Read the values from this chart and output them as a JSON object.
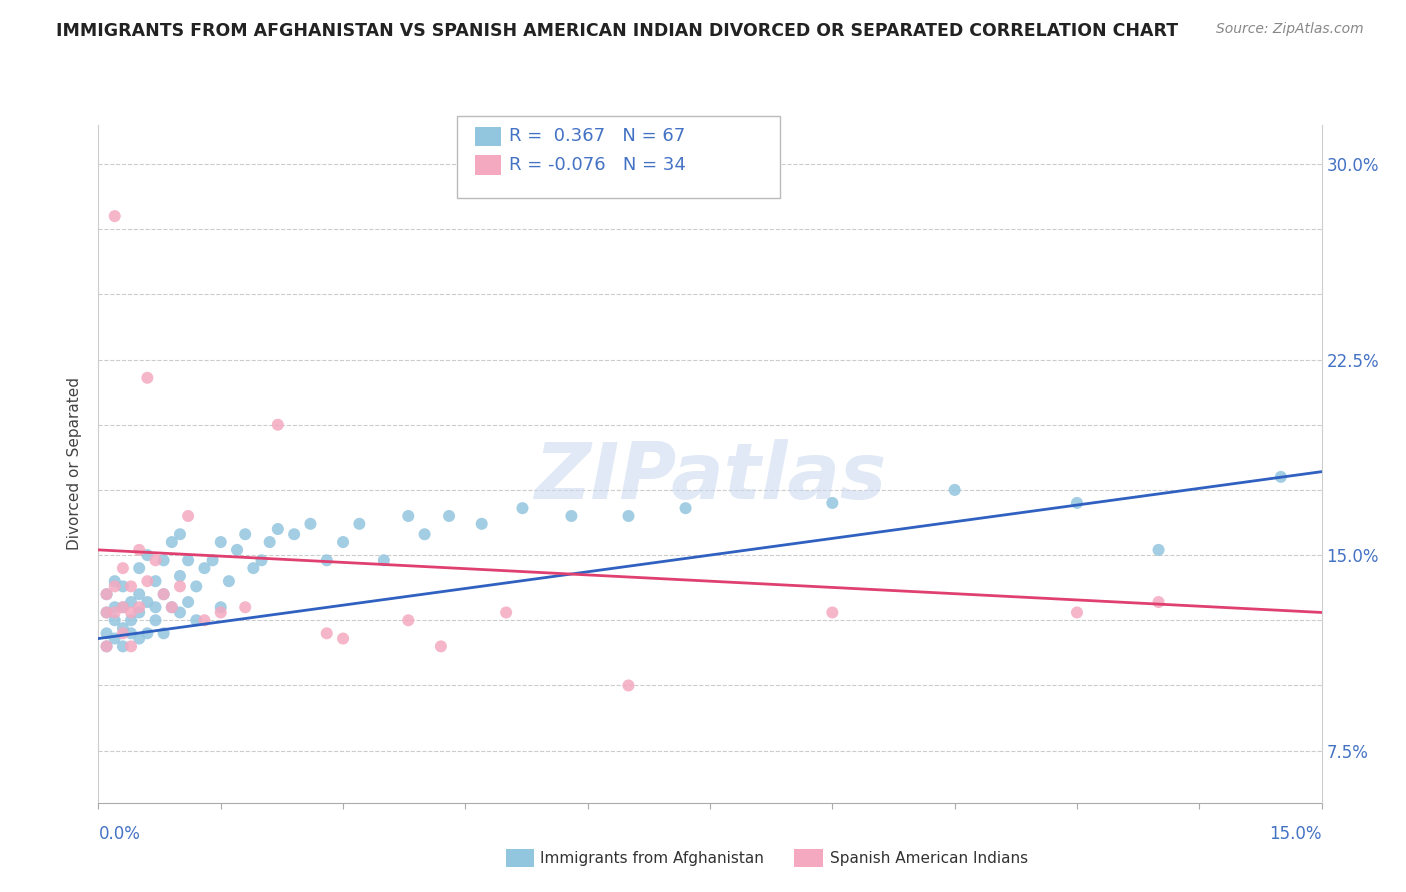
{
  "title": "IMMIGRANTS FROM AFGHANISTAN VS SPANISH AMERICAN INDIAN DIVORCED OR SEPARATED CORRELATION CHART",
  "source": "Source: ZipAtlas.com",
  "ylabel": "Divorced or Separated",
  "legend_label1": "Immigrants from Afghanistan",
  "legend_label2": "Spanish American Indians",
  "r1": "0.367",
  "n1": "67",
  "r2": "-0.076",
  "n2": "34",
  "blue_color": "#92c5de",
  "pink_color": "#f4a9c0",
  "trend_blue": "#3060c0",
  "trend_pink": "#e04070",
  "axis_label_color": "#4472c4",
  "title_color": "#222222",
  "watermark": "ZIPatlas",
  "xlim": [
    0.0,
    0.15
  ],
  "ylim": [
    0.055,
    0.315
  ],
  "blue_trend_y0": 0.118,
  "blue_trend_y1": 0.182,
  "pink_trend_y0": 0.152,
  "pink_trend_y1": 0.128,
  "blue_scatter_x": [
    0.001,
    0.001,
    0.001,
    0.001,
    0.002,
    0.002,
    0.002,
    0.002,
    0.003,
    0.003,
    0.003,
    0.003,
    0.004,
    0.004,
    0.004,
    0.005,
    0.005,
    0.005,
    0.005,
    0.006,
    0.006,
    0.006,
    0.007,
    0.007,
    0.007,
    0.008,
    0.008,
    0.008,
    0.009,
    0.009,
    0.01,
    0.01,
    0.01,
    0.011,
    0.011,
    0.012,
    0.012,
    0.013,
    0.014,
    0.015,
    0.015,
    0.016,
    0.017,
    0.018,
    0.019,
    0.02,
    0.021,
    0.022,
    0.024,
    0.026,
    0.028,
    0.03,
    0.032,
    0.035,
    0.038,
    0.04,
    0.043,
    0.047,
    0.052,
    0.058,
    0.065,
    0.072,
    0.09,
    0.105,
    0.12,
    0.13,
    0.145
  ],
  "blue_scatter_y": [
    0.128,
    0.135,
    0.12,
    0.115,
    0.13,
    0.125,
    0.118,
    0.14,
    0.122,
    0.13,
    0.115,
    0.138,
    0.125,
    0.132,
    0.12,
    0.128,
    0.135,
    0.118,
    0.145,
    0.12,
    0.132,
    0.15,
    0.125,
    0.14,
    0.13,
    0.135,
    0.148,
    0.12,
    0.13,
    0.155,
    0.128,
    0.142,
    0.158,
    0.132,
    0.148,
    0.125,
    0.138,
    0.145,
    0.148,
    0.13,
    0.155,
    0.14,
    0.152,
    0.158,
    0.145,
    0.148,
    0.155,
    0.16,
    0.158,
    0.162,
    0.148,
    0.155,
    0.162,
    0.148,
    0.165,
    0.158,
    0.165,
    0.162,
    0.168,
    0.165,
    0.165,
    0.168,
    0.17,
    0.175,
    0.17,
    0.152,
    0.18
  ],
  "pink_scatter_x": [
    0.001,
    0.001,
    0.001,
    0.002,
    0.002,
    0.002,
    0.003,
    0.003,
    0.003,
    0.004,
    0.004,
    0.004,
    0.005,
    0.005,
    0.006,
    0.006,
    0.007,
    0.008,
    0.009,
    0.01,
    0.011,
    0.013,
    0.015,
    0.018,
    0.022,
    0.028,
    0.03,
    0.038,
    0.042,
    0.05,
    0.065,
    0.09,
    0.12,
    0.13
  ],
  "pink_scatter_y": [
    0.128,
    0.135,
    0.115,
    0.28,
    0.138,
    0.128,
    0.145,
    0.13,
    0.12,
    0.138,
    0.128,
    0.115,
    0.152,
    0.13,
    0.218,
    0.14,
    0.148,
    0.135,
    0.13,
    0.138,
    0.165,
    0.125,
    0.128,
    0.13,
    0.2,
    0.12,
    0.118,
    0.125,
    0.115,
    0.128,
    0.1,
    0.128,
    0.128,
    0.132
  ]
}
